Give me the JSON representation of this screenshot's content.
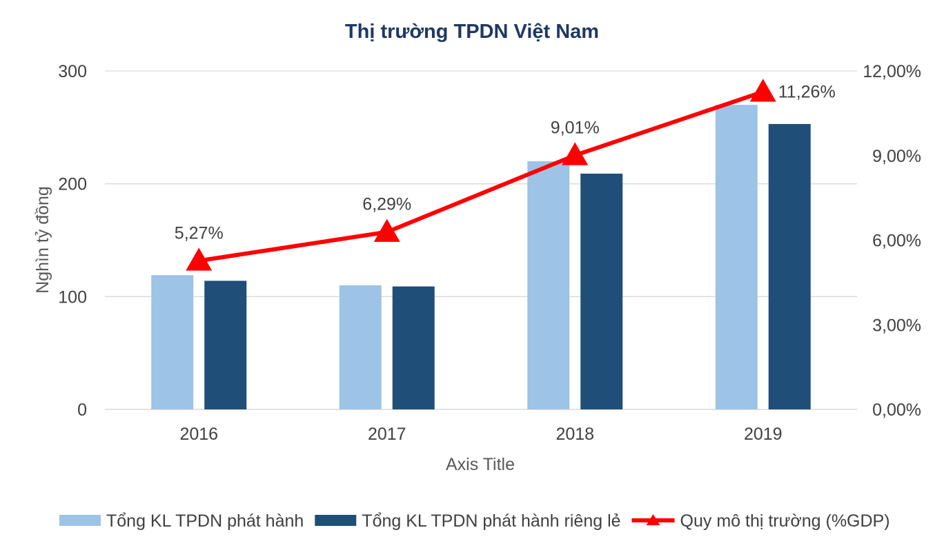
{
  "chart_data": {
    "type": "bar",
    "title": "Thị trường TPDN Việt Nam",
    "xlabel": "Axis Title",
    "ylabel": "Nghìn tỷ đồng",
    "categories": [
      "2016",
      "2017",
      "2018",
      "2019"
    ],
    "ylim": [
      0,
      300
    ],
    "yticks": [
      "0",
      "100",
      "200",
      "300"
    ],
    "y2lim": [
      0,
      12
    ],
    "y2ticks": [
      "0,00%",
      "3,00%",
      "6,00%",
      "9,00%",
      "12,00%"
    ],
    "grid": true,
    "legend_position": "bottom",
    "series": [
      {
        "name": "Tổng KL TPDN phát hành",
        "type": "bar",
        "axis": "left",
        "color": "#9DC3E6",
        "values": [
          119,
          110,
          220,
          270
        ]
      },
      {
        "name": "Tổng KL TPDN phát hành riêng lẻ",
        "type": "bar",
        "axis": "left",
        "color": "#1F4E79",
        "values": [
          114,
          109,
          209,
          253
        ]
      },
      {
        "name": "Quy mô thị trường (%GDP)",
        "type": "line",
        "axis": "right",
        "color": "#FF0000",
        "marker": "triangle",
        "values": [
          5.27,
          6.29,
          9.01,
          11.26
        ],
        "labels": [
          "5,27%",
          "6,29%",
          "9,01%",
          "11,26%"
        ]
      }
    ],
    "colors": {
      "title": "#1F3864",
      "text": "#404040",
      "grid": "#D9D9D9"
    }
  }
}
